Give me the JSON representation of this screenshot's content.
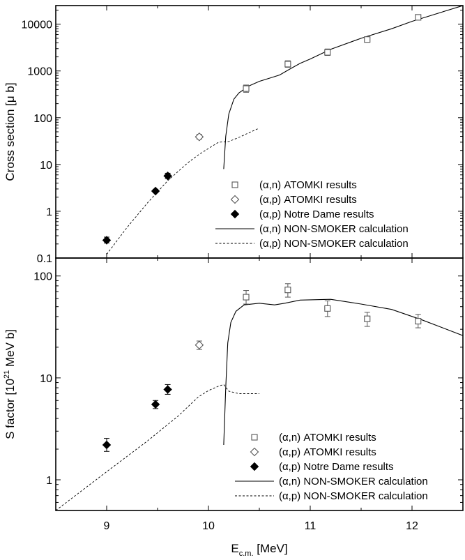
{
  "chart_data": [
    {
      "type": "scatter",
      "panel": "top",
      "ylabel": "Cross section [μ b]",
      "yscale": "log",
      "ylim": [
        0.1,
        25000
      ],
      "xlim": [
        8.5,
        12.5
      ],
      "y_ticks": [
        {
          "value": 0.1,
          "label": "0.1"
        },
        {
          "value": 1,
          "label": "1"
        },
        {
          "value": 10,
          "label": "10"
        },
        {
          "value": 100,
          "label": "100"
        },
        {
          "value": 1000,
          "label": "1000"
        },
        {
          "value": 10000,
          "label": "10000"
        }
      ],
      "series": [
        {
          "name": "an_atomki",
          "label": "(α,n) ATOMKI results",
          "marker": "open-square",
          "points": [
            {
              "x": 10.37,
              "y": 420,
              "ylo": 350,
              "yhi": 500
            },
            {
              "x": 10.78,
              "y": 1400,
              "ylo": 1200,
              "yhi": 1650
            },
            {
              "x": 11.17,
              "y": 2500,
              "ylo": 2150,
              "yhi": 2950
            },
            {
              "x": 11.56,
              "y": 4700,
              "ylo": 4200,
              "yhi": 5200
            },
            {
              "x": 12.06,
              "y": 14000,
              "ylo": 13000,
              "yhi": 15200
            }
          ]
        },
        {
          "name": "ap_atomki",
          "label": "(α,p) ATOMKI results",
          "marker": "open-diamond",
          "points": [
            {
              "x": 9.91,
              "y": 39,
              "ylo": 35,
              "yhi": 44
            }
          ]
        },
        {
          "name": "ap_notre_dame",
          "label": "(α,p) Notre Dame results",
          "marker": "filled-diamond",
          "points": [
            {
              "x": 9.0,
              "y": 0.24,
              "ylo": 0.21,
              "yhi": 0.28
            },
            {
              "x": 9.48,
              "y": 2.7,
              "ylo": 2.5,
              "yhi": 2.95
            },
            {
              "x": 9.6,
              "y": 5.7,
              "ylo": 5.0,
              "yhi": 6.5
            }
          ]
        },
        {
          "name": "an_nonsmoker",
          "label": "(α,n) NON-SMOKER calculation",
          "line": "solid",
          "points": [
            {
              "x": 10.15,
              "y": 8
            },
            {
              "x": 10.17,
              "y": 40
            },
            {
              "x": 10.2,
              "y": 120
            },
            {
              "x": 10.25,
              "y": 250
            },
            {
              "x": 10.3,
              "y": 340
            },
            {
              "x": 10.4,
              "y": 480
            },
            {
              "x": 10.5,
              "y": 600
            },
            {
              "x": 10.6,
              "y": 700
            },
            {
              "x": 10.7,
              "y": 820
            },
            {
              "x": 10.8,
              "y": 1100
            },
            {
              "x": 10.9,
              "y": 1450
            },
            {
              "x": 11.0,
              "y": 1800
            },
            {
              "x": 11.2,
              "y": 2900
            },
            {
              "x": 11.5,
              "y": 5000
            },
            {
              "x": 11.8,
              "y": 8000
            },
            {
              "x": 12.0,
              "y": 11500
            },
            {
              "x": 12.5,
              "y": 25000
            }
          ]
        },
        {
          "name": "ap_nonsmoker",
          "label": "(α,p) NON-SMOKER calculation",
          "line": "dashed",
          "points": [
            {
              "x": 9.0,
              "y": 0.12
            },
            {
              "x": 9.2,
              "y": 0.45
            },
            {
              "x": 9.4,
              "y": 1.5
            },
            {
              "x": 9.6,
              "y": 4.5
            },
            {
              "x": 9.8,
              "y": 11
            },
            {
              "x": 9.9,
              "y": 16
            },
            {
              "x": 10.0,
              "y": 22
            },
            {
              "x": 10.1,
              "y": 30
            },
            {
              "x": 10.2,
              "y": 31
            },
            {
              "x": 10.3,
              "y": 38
            },
            {
              "x": 10.4,
              "y": 48
            },
            {
              "x": 10.5,
              "y": 60
            }
          ]
        }
      ]
    },
    {
      "type": "scatter",
      "panel": "bottom",
      "ylabel_main": "S factor [10",
      "ylabel_sup": "21",
      "ylabel_tail": " MeV b]",
      "yscale": "log",
      "ylim": [
        0.5,
        150
      ],
      "xlim": [
        8.5,
        12.5
      ],
      "y_ticks": [
        {
          "value": 1,
          "label": "1"
        },
        {
          "value": 10,
          "label": "10"
        },
        {
          "value": 100,
          "label": "100"
        }
      ],
      "series": [
        {
          "name": "an_atomki",
          "label": "(α,n) ATOMKI results",
          "marker": "open-square",
          "points": [
            {
              "x": 10.37,
              "y": 62,
              "ylo": 53,
              "yhi": 72
            },
            {
              "x": 10.78,
              "y": 73,
              "ylo": 62,
              "yhi": 84
            },
            {
              "x": 11.17,
              "y": 48,
              "ylo": 40,
              "yhi": 57
            },
            {
              "x": 11.56,
              "y": 38,
              "ylo": 32,
              "yhi": 44
            },
            {
              "x": 12.06,
              "y": 36,
              "ylo": 31,
              "yhi": 42
            }
          ]
        },
        {
          "name": "ap_atomki",
          "label": "(α,p) ATOMKI results",
          "marker": "open-diamond",
          "points": [
            {
              "x": 9.91,
              "y": 21,
              "ylo": 19,
              "yhi": 23
            }
          ]
        },
        {
          "name": "ap_notre_dame",
          "label": "(α,p) Notre Dame results",
          "marker": "filled-diamond",
          "points": [
            {
              "x": 9.0,
              "y": 2.2,
              "ylo": 1.9,
              "yhi": 2.55
            },
            {
              "x": 9.48,
              "y": 5.5,
              "ylo": 5.0,
              "yhi": 6.0
            },
            {
              "x": 9.6,
              "y": 7.7,
              "ylo": 6.9,
              "yhi": 8.6
            }
          ]
        },
        {
          "name": "an_nonsmoker",
          "label": "(α,n) NON-SMOKER calculation",
          "line": "solid",
          "points": [
            {
              "x": 10.15,
              "y": 2.2
            },
            {
              "x": 10.17,
              "y": 8
            },
            {
              "x": 10.19,
              "y": 22
            },
            {
              "x": 10.22,
              "y": 35
            },
            {
              "x": 10.27,
              "y": 45
            },
            {
              "x": 10.35,
              "y": 52
            },
            {
              "x": 10.5,
              "y": 54
            },
            {
              "x": 10.65,
              "y": 52
            },
            {
              "x": 10.75,
              "y": 54
            },
            {
              "x": 10.9,
              "y": 58
            },
            {
              "x": 11.2,
              "y": 59
            },
            {
              "x": 11.5,
              "y": 53
            },
            {
              "x": 11.8,
              "y": 47
            },
            {
              "x": 12.1,
              "y": 37
            },
            {
              "x": 12.5,
              "y": 26
            }
          ]
        },
        {
          "name": "ap_nonsmoker",
          "label": "(α,p) NON-SMOKER calculation",
          "line": "dashed",
          "points": [
            {
              "x": 8.5,
              "y": 0.5
            },
            {
              "x": 9.0,
              "y": 1.2
            },
            {
              "x": 9.4,
              "y": 2.4
            },
            {
              "x": 9.7,
              "y": 4.2
            },
            {
              "x": 9.9,
              "y": 6.5
            },
            {
              "x": 10.0,
              "y": 7.5
            },
            {
              "x": 10.1,
              "y": 8.3
            },
            {
              "x": 10.15,
              "y": 8.6
            },
            {
              "x": 10.2,
              "y": 7.4
            },
            {
              "x": 10.3,
              "y": 7.0
            },
            {
              "x": 10.5,
              "y": 7.0
            }
          ]
        }
      ]
    }
  ],
  "x_axis": {
    "label_main": "E",
    "label_sub": "c.m.",
    "label_tail": " [MeV]",
    "range": [
      8.5,
      12.5
    ],
    "ticks": [
      {
        "value": 9,
        "label": "9"
      },
      {
        "value": 10,
        "label": "10"
      },
      {
        "value": 11,
        "label": "11"
      },
      {
        "value": 12,
        "label": "12"
      }
    ]
  },
  "colors": {
    "line": "#000000",
    "background": "#ffffff"
  }
}
